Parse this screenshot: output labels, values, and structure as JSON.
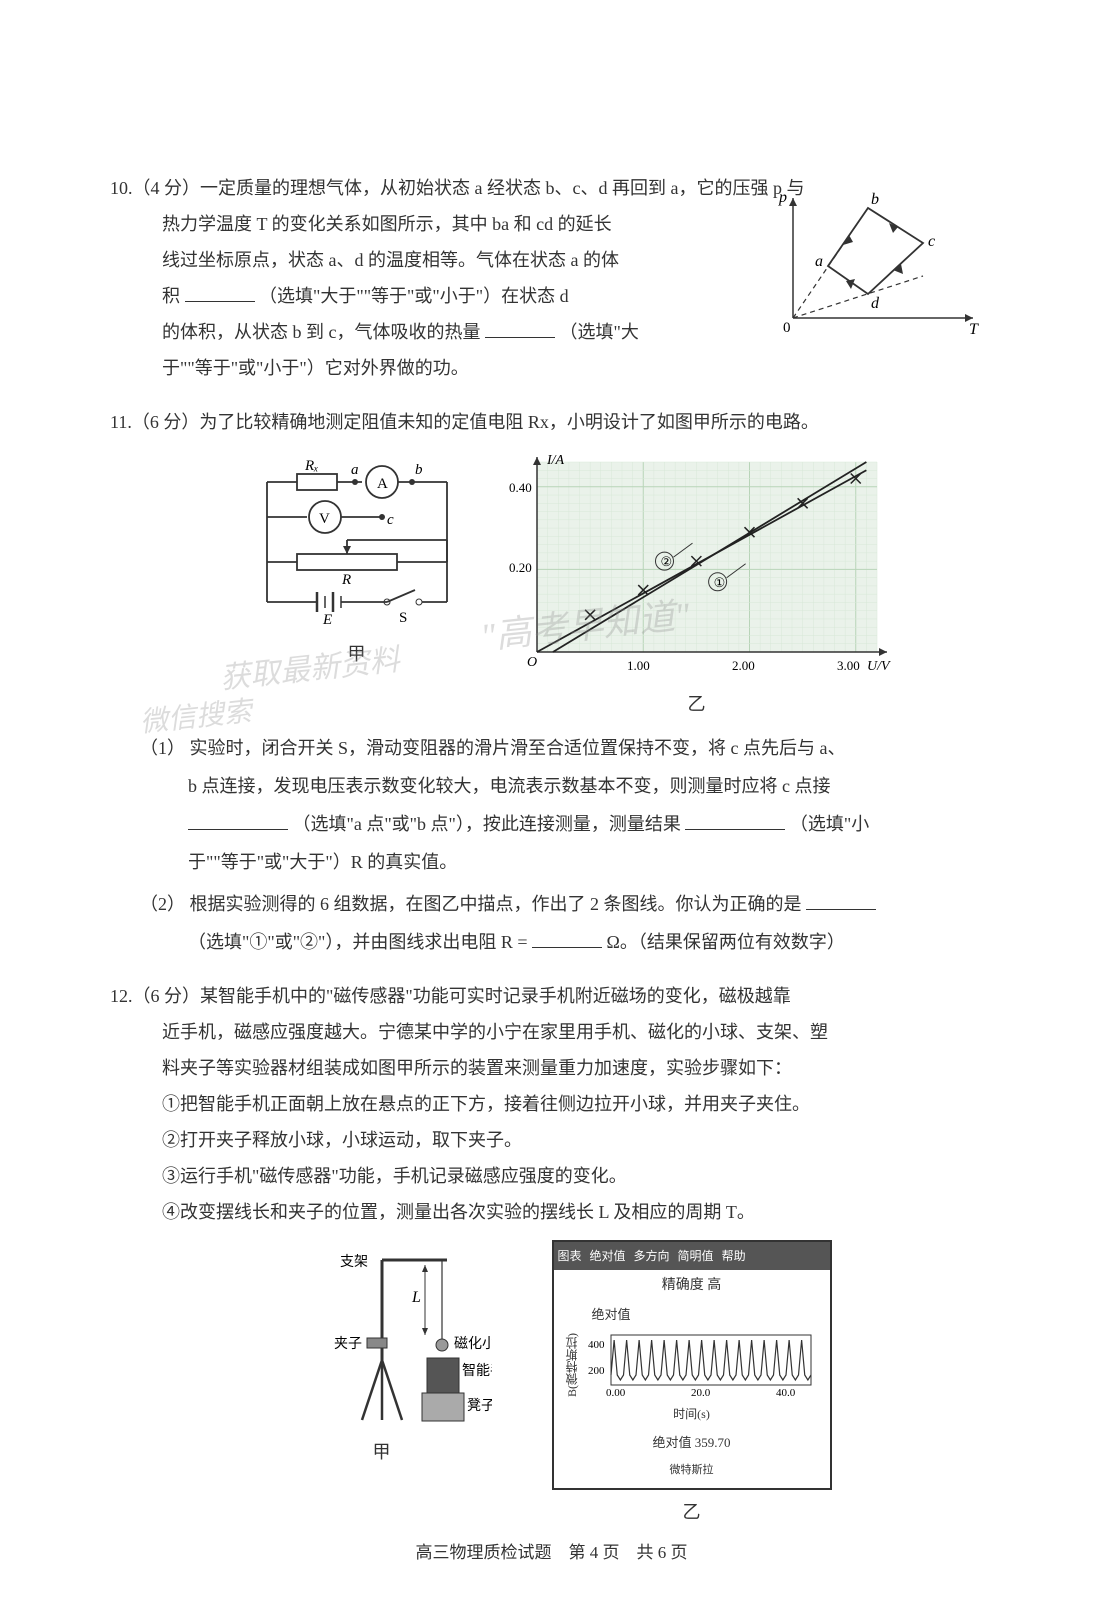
{
  "q10": {
    "num": "10.",
    "points": "（4 分）",
    "line1": "一定质量的理想气体，从初始状态 a 经状态 b、c、d 再回到 a，它的压强 p 与",
    "line2_pre": "热力学温度 T 的变化关系如图所示，其中 ba 和 cd 的延长",
    "line3": "线过坐标原点，状态 a、d 的温度相等。气体在状态 a 的体",
    "line4_pre": "积",
    "line4_post": "（选填\"大于\"\"等于\"或\"小于\"）在状态 d",
    "line5_pre": "的体积，从状态 b 到 c，气体吸收的热量",
    "line5_post": "（选填\"大",
    "line6": "于\"\"等于\"或\"小于\"）它对外界做的功。",
    "chart": {
      "y_label": "p",
      "x_label": "T",
      "origin_label": "0",
      "nodes": [
        "a",
        "b",
        "c",
        "d"
      ],
      "line_color": "#333333",
      "dash_color": "#333333"
    }
  },
  "q11": {
    "num": "11.",
    "points": "（6 分）",
    "intro": "为了比较精确地测定阻值未知的定值电阻 Rx，小明设计了如图甲所示的电路。",
    "circuit": {
      "labels": {
        "Rx": "Rx",
        "a": "a",
        "b": "b",
        "c": "c",
        "A": "A",
        "V": "V",
        "R": "R",
        "E": "E",
        "S": "S"
      },
      "caption": "甲"
    },
    "chart": {
      "y_label": "I/A",
      "x_label": "U/V",
      "y_ticks": [
        "0.20",
        "0.40"
      ],
      "x_ticks": [
        "1.00",
        "2.00",
        "3.00"
      ],
      "origin_label": "O",
      "series1_label": "①",
      "series2_label": "②",
      "caption": "乙",
      "grid_color": "#b8d4b8",
      "grid_minor_color": "#d8e8d8",
      "background": "#eaf2ea",
      "line_color": "#222222",
      "points": [
        {
          "x": 0.5,
          "y": 0.09
        },
        {
          "x": 1.0,
          "y": 0.15
        },
        {
          "x": 1.5,
          "y": 0.22
        },
        {
          "x": 2.0,
          "y": 0.29
        },
        {
          "x": 2.5,
          "y": 0.36
        },
        {
          "x": 3.0,
          "y": 0.42
        }
      ],
      "xlim": [
        0,
        3.2
      ],
      "ylim": [
        0,
        0.46
      ]
    },
    "sub1": {
      "num": "（1）",
      "line1": "实验时，闭合开关 S，滑动变阻器的滑片滑至合适位置保持不变，将 c 点先后与 a、",
      "line2_pre": "b 点连接，发现电压表示数变化较大，电流表示数基本不变，则测量时应将 c 点接",
      "line3_pre": "",
      "line3_mid": "（选填\"a 点\"或\"b 点\"），按此连接测量，测量结果",
      "line3_post": "（选填\"小",
      "line4": "于\"\"等于\"或\"大于\"）R 的真实值。"
    },
    "sub2": {
      "num": "（2）",
      "line1_pre": "根据实验测得的 6 组数据，在图乙中描点，作出了 2 条图线。你认为正确的是",
      "line2_pre": "（选填\"①\"或\"②\"），并由图线求出电阻 R =",
      "line2_post": "Ω。（结果保留两位有效数字）"
    }
  },
  "q12": {
    "num": "12.",
    "points": "（6 分）",
    "line1": "某智能手机中的\"磁传感器\"功能可实时记录手机附近磁场的变化，磁极越靠",
    "line2": "近手机，磁感应强度越大。宁德某中学的小宁在家里用手机、磁化的小球、支架、塑",
    "line3": "料夹子等实验器材组装成如图甲所示的装置来测量重力加速度，实验步骤如下：",
    "step1": "①把智能手机正面朝上放在悬点的正下方，接着往侧边拉开小球，并用夹子夹住。",
    "step2": "②打开夹子释放小球，小球运动，取下夹子。",
    "step3": "③运行手机\"磁传感器\"功能，手机记录磁感应强度的变化。",
    "step4": "④改变摆线长和夹子的位置，测量出各次实验的摆线长 L 及相应的周期 T。",
    "apparatus": {
      "labels": {
        "bracket": "支架",
        "L": "L",
        "clip": "夹子",
        "ball": "磁化小球",
        "phone": "智能手机",
        "stool": "凳子"
      },
      "caption": "甲"
    },
    "sensor": {
      "menu": [
        "图表",
        "绝对值",
        "多方向",
        "简明值",
        "帮助"
      ],
      "title": "精确度 高",
      "sub_label": "绝对值",
      "y_label": "B(微特斯拉)",
      "y_ticks": [
        "400",
        "200"
      ],
      "x_ticks": [
        "0.00",
        "20.0",
        "40.0"
      ],
      "x_label": "时间(s)",
      "footer_label": "绝对值",
      "footer_value": "359.70",
      "footer_unit": "微特斯拉",
      "caption": "乙",
      "chart_color": "#333333",
      "background": "#ffffff",
      "oscillations": 16
    }
  },
  "footer": "高三物理质检试题　第 4 页　共 6 页",
  "watermarks": {
    "w1": "\"高考早知道\"",
    "w2": "获取最新资料",
    "w3": "微信搜索"
  }
}
